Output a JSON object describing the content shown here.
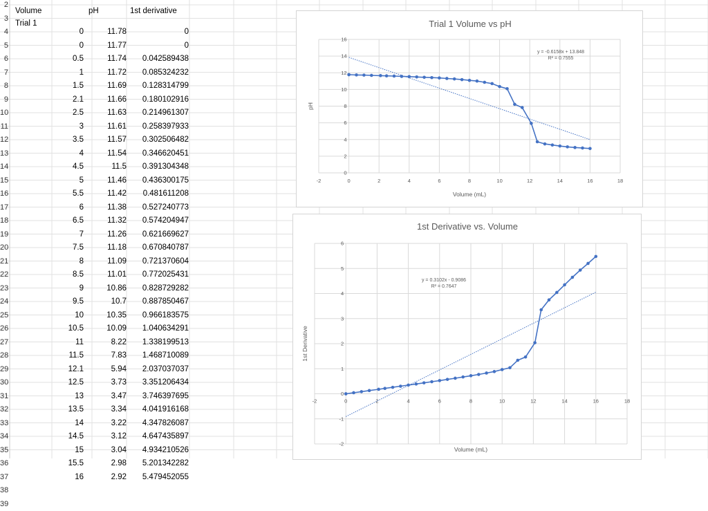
{
  "sheet": {
    "row_numbers": [
      "2",
      "3",
      "4",
      "5",
      "6",
      "7",
      "8",
      "9",
      "10",
      "11",
      "12",
      "13",
      "14",
      "15",
      "16",
      "17",
      "18",
      "19",
      "20",
      "21",
      "22",
      "23",
      "24",
      "25",
      "26",
      "27",
      "28",
      "29",
      "30",
      "31",
      "32",
      "33",
      "34",
      "35",
      "36",
      "37",
      "38",
      "39"
    ],
    "header_volume": "Volume",
    "header_ph": "pH",
    "header_deriv": "1st derivative",
    "trial_label": "Trial 1",
    "rows": [
      [
        "0",
        "11.78",
        "0"
      ],
      [
        "0",
        "11.77",
        "0"
      ],
      [
        "0.5",
        "11.74",
        "0.042589438"
      ],
      [
        "1",
        "11.72",
        "0.085324232"
      ],
      [
        "1.5",
        "11.69",
        "0.128314799"
      ],
      [
        "2.1",
        "11.66",
        "0.180102916"
      ],
      [
        "2.5",
        "11.63",
        "0.214961307"
      ],
      [
        "3",
        "11.61",
        "0.258397933"
      ],
      [
        "3.5",
        "11.57",
        "0.302506482"
      ],
      [
        "4",
        "11.54",
        "0.346620451"
      ],
      [
        "4.5",
        "11.5",
        "0.391304348"
      ],
      [
        "5",
        "11.46",
        "0.436300175"
      ],
      [
        "5.5",
        "11.42",
        "0.481611208"
      ],
      [
        "6",
        "11.38",
        "0.527240773"
      ],
      [
        "6.5",
        "11.32",
        "0.574204947"
      ],
      [
        "7",
        "11.26",
        "0.621669627"
      ],
      [
        "7.5",
        "11.18",
        "0.670840787"
      ],
      [
        "8",
        "11.09",
        "0.721370604"
      ],
      [
        "8.5",
        "11.01",
        "0.772025431"
      ],
      [
        "9",
        "10.86",
        "0.828729282"
      ],
      [
        "9.5",
        "10.7",
        "0.887850467"
      ],
      [
        "10",
        "10.35",
        "0.966183575"
      ],
      [
        "10.5",
        "10.09",
        "1.040634291"
      ],
      [
        "11",
        "8.22",
        "1.338199513"
      ],
      [
        "11.5",
        "7.83",
        "1.468710089"
      ],
      [
        "12.1",
        "5.94",
        "2.037037037"
      ],
      [
        "12.5",
        "3.73",
        "3.351206434"
      ],
      [
        "13",
        "3.47",
        "3.746397695"
      ],
      [
        "13.5",
        "3.34",
        "4.041916168"
      ],
      [
        "14",
        "3.22",
        "4.347826087"
      ],
      [
        "14.5",
        "3.12",
        "4.647435897"
      ],
      [
        "15",
        "3.04",
        "4.934210526"
      ],
      [
        "15.5",
        "2.98",
        "5.201342282"
      ],
      [
        "16",
        "2.92",
        "5.479452055"
      ]
    ]
  },
  "chart_data": [
    {
      "type": "scatter",
      "title": "Trial 1 Volume vs pH",
      "xlabel": "Volume (mL)",
      "ylabel": "pH",
      "xlim": [
        -2,
        18
      ],
      "ylim": [
        0,
        16
      ],
      "xticks": [
        "-2",
        "0",
        "2",
        "4",
        "6",
        "8",
        "10",
        "12",
        "14",
        "16",
        "18"
      ],
      "yticks": [
        "0",
        "2",
        "4",
        "6",
        "8",
        "10",
        "12",
        "14",
        "16"
      ],
      "series_color": "#4472c4",
      "x": [
        0,
        0,
        0.5,
        1,
        1.5,
        2.1,
        2.5,
        3,
        3.5,
        4,
        4.5,
        5,
        5.5,
        6,
        6.5,
        7,
        7.5,
        8,
        8.5,
        9,
        9.5,
        10,
        10.5,
        11,
        11.5,
        12.1,
        12.5,
        13,
        13.5,
        14,
        14.5,
        15,
        15.5,
        16
      ],
      "y": [
        11.78,
        11.77,
        11.74,
        11.72,
        11.69,
        11.66,
        11.63,
        11.61,
        11.57,
        11.54,
        11.5,
        11.46,
        11.42,
        11.38,
        11.32,
        11.26,
        11.18,
        11.09,
        11.01,
        10.86,
        10.7,
        10.35,
        10.09,
        8.22,
        7.83,
        5.94,
        3.73,
        3.47,
        3.34,
        3.22,
        3.12,
        3.04,
        2.98,
        2.92
      ],
      "trendline": {
        "slope": -0.6158,
        "intercept": 13.848,
        "x_range": [
          0,
          16
        ]
      },
      "equation": "y = -0.6158x + 13.848",
      "r2": "R² = 0.7555"
    },
    {
      "type": "scatter",
      "title": "1st Derivative vs. Volume",
      "xlabel": "Volume (mL)",
      "ylabel": "1st Derivative",
      "xlim": [
        -2,
        18
      ],
      "ylim": [
        -2,
        6
      ],
      "xticks": [
        "-2",
        "0",
        "2",
        "4",
        "6",
        "8",
        "10",
        "12",
        "14",
        "16",
        "18"
      ],
      "yticks": [
        "-2",
        "-1",
        "0",
        "1",
        "2",
        "3",
        "4",
        "5",
        "6"
      ],
      "series_color": "#4472c4",
      "x": [
        0,
        0,
        0.5,
        1,
        1.5,
        2.1,
        2.5,
        3,
        3.5,
        4,
        4.5,
        5,
        5.5,
        6,
        6.5,
        7,
        7.5,
        8,
        8.5,
        9,
        9.5,
        10,
        10.5,
        11,
        11.5,
        12.1,
        12.5,
        13,
        13.5,
        14,
        14.5,
        15,
        15.5,
        16
      ],
      "y": [
        0,
        0,
        0.042589438,
        0.085324232,
        0.128314799,
        0.180102916,
        0.214961307,
        0.258397933,
        0.302506482,
        0.346620451,
        0.391304348,
        0.436300175,
        0.481611208,
        0.527240773,
        0.574204947,
        0.621669627,
        0.670840787,
        0.721370604,
        0.772025431,
        0.828729282,
        0.887850467,
        0.966183575,
        1.040634291,
        1.338199513,
        1.468710089,
        2.037037037,
        3.351206434,
        3.746397695,
        4.041916168,
        4.347826087,
        4.647435897,
        4.934210526,
        5.201342282,
        5.479452055
      ],
      "trendline": {
        "slope": 0.3102,
        "intercept": -0.9086,
        "x_range": [
          0,
          16
        ]
      },
      "equation": "y = 0.3102x - 0.9086",
      "r2": "R² = 0.7647"
    }
  ]
}
